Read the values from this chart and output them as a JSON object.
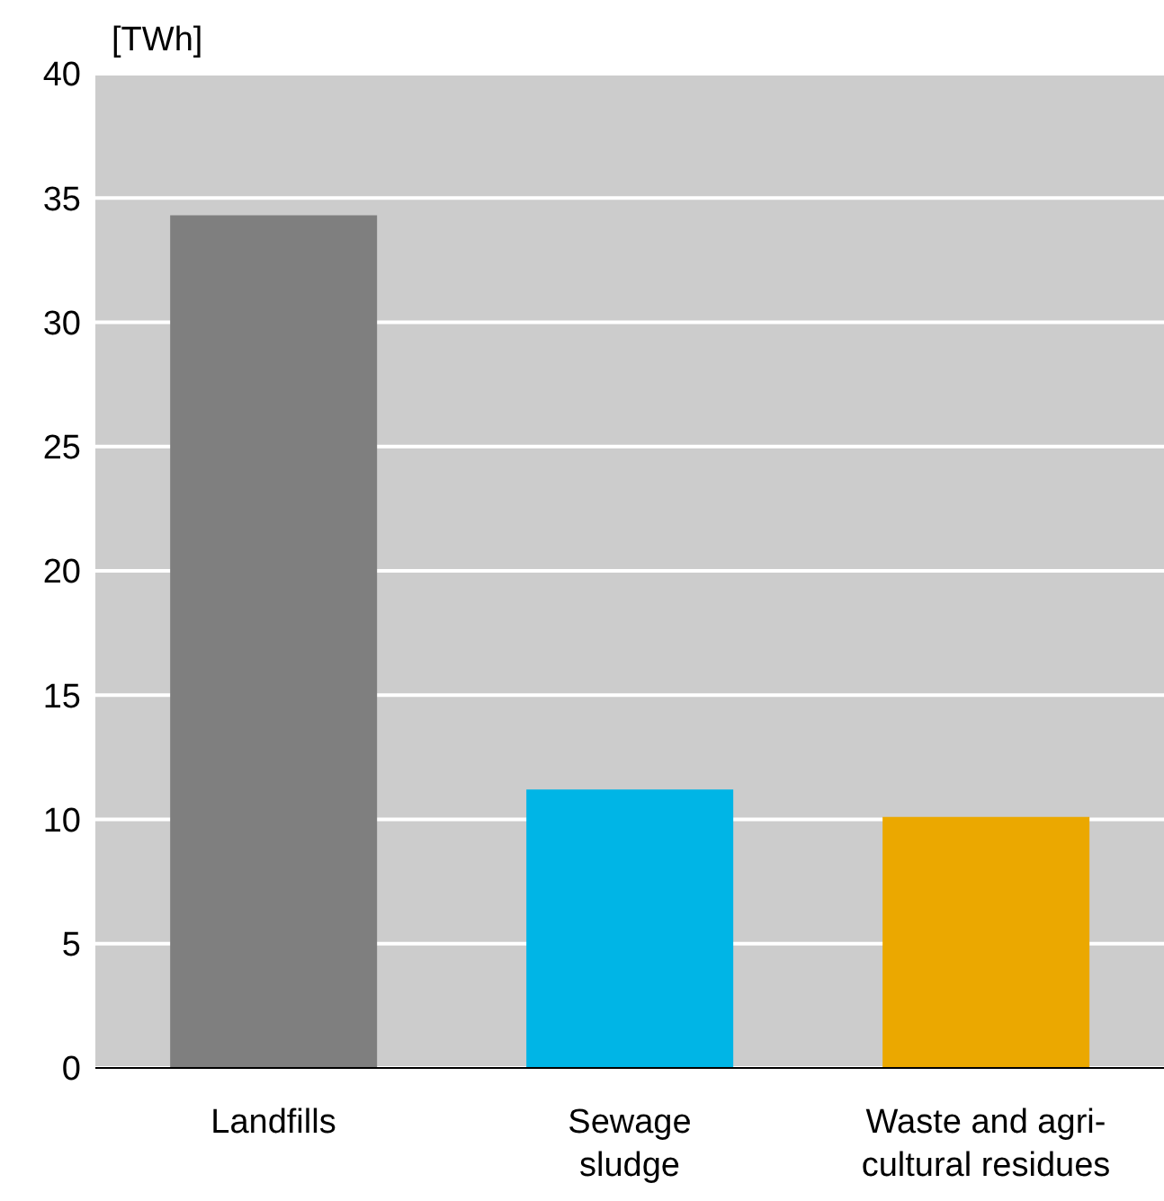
{
  "chart_data": {
    "type": "bar",
    "ylabel": "[TWh]",
    "categories": [
      "Landfills",
      "Sewage\nsludge",
      "Waste and agri-\ncultural residues"
    ],
    "values": [
      34.3,
      11.2,
      10.1
    ],
    "colors": [
      "#7f7f7f",
      "#00b5e6",
      "#eba800"
    ],
    "ylim": [
      0,
      40
    ],
    "yticks": [
      0,
      5,
      10,
      15,
      20,
      25,
      30,
      35,
      40
    ],
    "grid": "y",
    "legend": false
  }
}
